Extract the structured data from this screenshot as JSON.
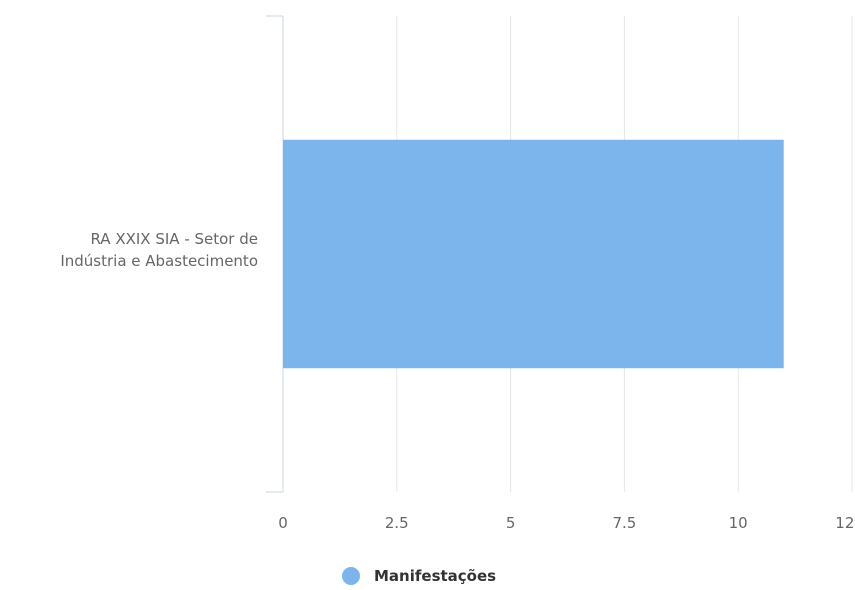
{
  "chart_data": {
    "type": "bar",
    "orientation": "horizontal",
    "title": "",
    "xlabel": "",
    "ylabel": "",
    "categories": [
      [
        "RA XXIX SIA - Setor de",
        "Indústria e Abastecimento"
      ]
    ],
    "series": [
      {
        "name": "Manifestações",
        "values": [
          11
        ],
        "color": "#7cb5ec"
      }
    ],
    "xlim": [
      0,
      12.5
    ],
    "ticks": [
      "0",
      "2.5",
      "5",
      "7.5",
      "10",
      "12.5"
    ],
    "grid": true,
    "legend_position": "bottom-center"
  }
}
